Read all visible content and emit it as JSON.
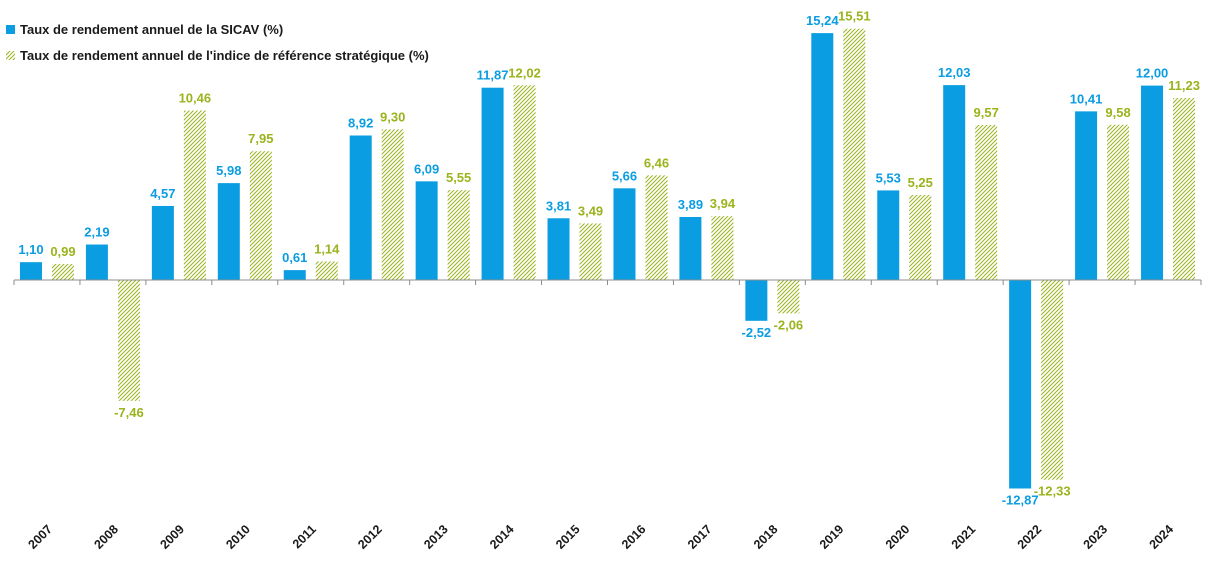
{
  "colors": {
    "series1": "#0B9DE1",
    "series2": "#9BB31C",
    "axis": "#8c8c8c"
  },
  "chart_data": {
    "type": "bar",
    "categories": [
      "2007",
      "2008",
      "2009",
      "2010",
      "2011",
      "2012",
      "2013",
      "2014",
      "2015",
      "2016",
      "2017",
      "2018",
      "2019",
      "2020",
      "2021",
      "2022",
      "2023",
      "2024"
    ],
    "series": [
      {
        "name": "Taux de rendement annuel de la SICAV (%)",
        "values": [
          1.1,
          2.19,
          4.57,
          5.98,
          0.61,
          8.92,
          6.09,
          11.87,
          3.81,
          5.66,
          3.89,
          -2.52,
          15.24,
          5.53,
          12.03,
          -12.87,
          10.41,
          12.0
        ],
        "labels": [
          "1,10",
          "2,19",
          "4,57",
          "5,98",
          "0,61",
          "8,92",
          "6,09",
          "11,87",
          "3,81",
          "5,66",
          "3,89",
          "-2,52",
          "15,24",
          "5,53",
          "12,03",
          "-12,87",
          "10,41",
          "12,00"
        ]
      },
      {
        "name": "Taux de rendement annuel de l'indice de référence stratégique (%)",
        "values": [
          0.99,
          -7.46,
          10.46,
          7.95,
          1.14,
          9.3,
          5.55,
          12.02,
          3.49,
          6.46,
          3.94,
          -2.06,
          15.51,
          5.25,
          9.57,
          -12.33,
          9.58,
          11.23
        ],
        "labels": [
          "0,99",
          "-7,46",
          "10,46",
          "7,95",
          "1,14",
          "9,30",
          "5,55",
          "12,02",
          "3,49",
          "6,46",
          "3,94",
          "-2,06",
          "15,51",
          "5,25",
          "9,57",
          "-12,33",
          "9,58",
          "11,23"
        ]
      }
    ],
    "legend_position": "top-left",
    "grid": false
  }
}
